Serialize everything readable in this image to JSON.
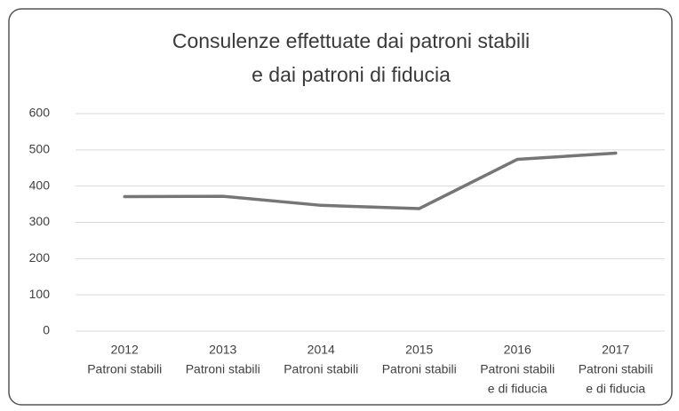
{
  "chart_data": {
    "type": "line",
    "title": [
      "Consulenze effettuate dai patroni stabili",
      "e dai patroni di fiducia"
    ],
    "categories": [
      [
        "2012",
        "Patroni stabili"
      ],
      [
        "2013",
        "Patroni stabili"
      ],
      [
        "2014",
        "Patroni stabili"
      ],
      [
        "2015",
        "Patroni stabili"
      ],
      [
        "2016",
        "Patroni stabili",
        "e di fiducia"
      ],
      [
        "2017",
        "Patroni stabili",
        "e di fiducia"
      ]
    ],
    "values": [
      371,
      372,
      347,
      338,
      474,
      491
    ],
    "color": "#767676",
    "ylim": [
      0,
      600
    ],
    "yticks": [
      0,
      100,
      200,
      300,
      400,
      500,
      600
    ],
    "grid": true
  }
}
